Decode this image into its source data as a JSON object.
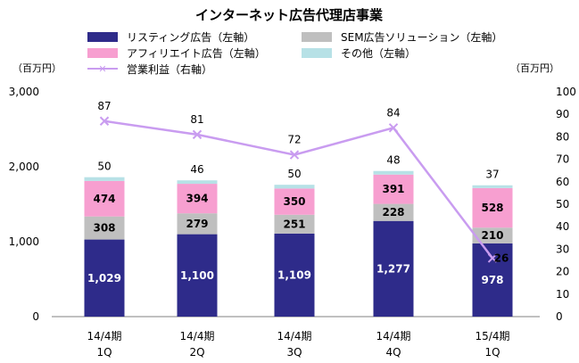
{
  "chart_data": {
    "type": "bar",
    "title": "インターネット広告代理店事業",
    "left_axis_label": "（百万円）",
    "right_axis_label": "（百万円）",
    "y_left_ticks": [
      "0",
      "1,000",
      "2,000",
      "3,000"
    ],
    "y_left_lim": [
      0,
      3000
    ],
    "y_right_ticks": [
      "0",
      "10",
      "20",
      "30",
      "40",
      "50",
      "60",
      "70",
      "80",
      "90",
      "100"
    ],
    "y_right_lim": [
      0,
      100
    ],
    "categories": [
      {
        "line1": "14/4期",
        "line2": "1Q"
      },
      {
        "line1": "14/4期",
        "line2": "2Q"
      },
      {
        "line1": "14/4期",
        "line2": "3Q"
      },
      {
        "line1": "14/4期",
        "line2": "4Q"
      },
      {
        "line1": "15/4期",
        "line2": "1Q"
      }
    ],
    "series": [
      {
        "name": "リスティング広告（左軸）",
        "color": "#2e2b8a",
        "label_style": "dark",
        "values": [
          1029,
          1100,
          1109,
          1277,
          978
        ],
        "labels": [
          "1,029",
          "1,100",
          "1,109",
          "1,277",
          "978"
        ]
      },
      {
        "name": "SEM広告ソリューション（左軸）",
        "color": "#bfbfbf",
        "label_style": "light",
        "values": [
          308,
          279,
          251,
          228,
          210
        ],
        "labels": [
          "308",
          "279",
          "251",
          "228",
          "210"
        ]
      },
      {
        "name": "アフィリエイト広告（左軸）",
        "color": "#f79fd0",
        "label_style": "light",
        "values": [
          474,
          394,
          350,
          391,
          528
        ],
        "labels": [
          "474",
          "394",
          "350",
          "391",
          "528"
        ]
      },
      {
        "name": "その他（左軸）",
        "color": "#b7e1e6",
        "label_style": "top",
        "values": [
          50,
          46,
          50,
          48,
          37
        ],
        "labels": [
          "50",
          "46",
          "50",
          "48",
          "37"
        ]
      }
    ],
    "line": {
      "name": "営業利益（右軸）",
      "color": "#c99cf0",
      "values": [
        87,
        81,
        72,
        84,
        26
      ],
      "labels": [
        "87",
        "81",
        "72",
        "84",
        "26"
      ]
    }
  }
}
